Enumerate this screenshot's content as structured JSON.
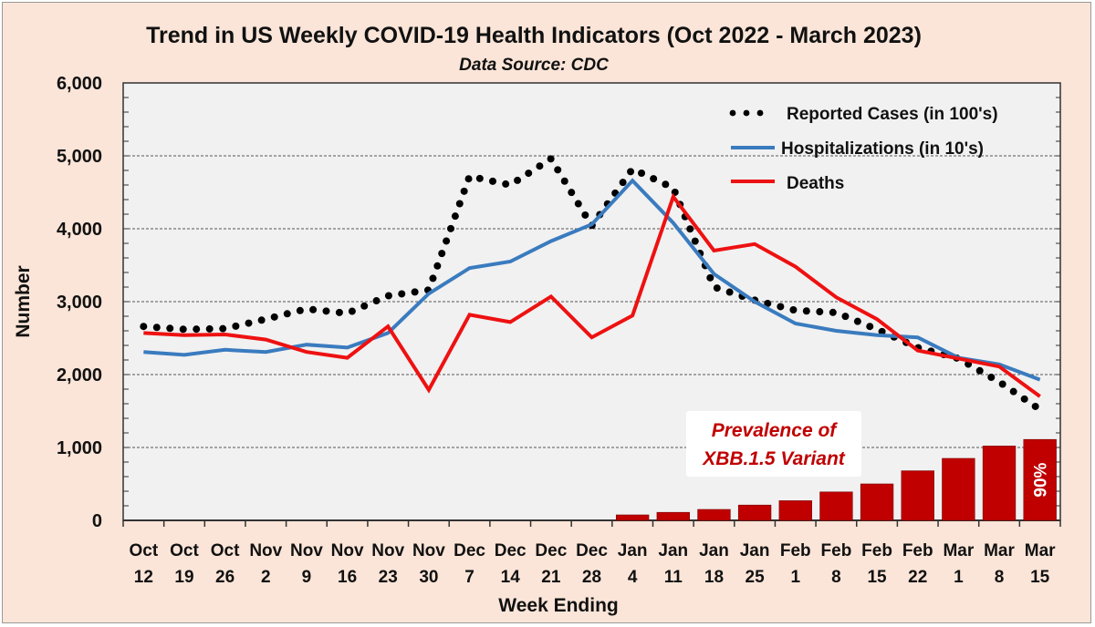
{
  "chart_data": {
    "type": "line",
    "title": "Trend in US Weekly COVID-19 Health Indicators (Oct 2022 - March 2023)",
    "subtitle": "Data Source: CDC",
    "xlabel": "Week Ending",
    "ylabel": "Number",
    "ylim": [
      0,
      6000
    ],
    "yticks": [
      0,
      1000,
      2000,
      3000,
      4000,
      5000,
      6000
    ],
    "ytick_labels": [
      "0",
      "1,000",
      "2,000",
      "3,000",
      "4,000",
      "5,000",
      "6,000"
    ],
    "grid": "horizontal-dashed",
    "legend_position": "top-right",
    "categories": [
      [
        "Oct",
        "12"
      ],
      [
        "Oct",
        "19"
      ],
      [
        "Oct",
        "26"
      ],
      [
        "Nov",
        "2"
      ],
      [
        "Nov",
        "9"
      ],
      [
        "Nov",
        "16"
      ],
      [
        "Nov",
        "23"
      ],
      [
        "Nov",
        "30"
      ],
      [
        "Dec",
        "7"
      ],
      [
        "Dec",
        "14"
      ],
      [
        "Dec",
        "21"
      ],
      [
        "Dec",
        "28"
      ],
      [
        "Jan",
        "4"
      ],
      [
        "Jan",
        "11"
      ],
      [
        "Jan",
        "18"
      ],
      [
        "Jan",
        "25"
      ],
      [
        "Feb",
        "1"
      ],
      [
        "Feb",
        "8"
      ],
      [
        "Feb",
        "15"
      ],
      [
        "Feb",
        "22"
      ],
      [
        "Mar",
        "1"
      ],
      [
        "Mar",
        "8"
      ],
      [
        "Mar",
        "15"
      ]
    ],
    "series": [
      {
        "name": "Reported Cases (in 100's)",
        "style": "dotted",
        "color": "#000000",
        "values": [
          2660,
          2620,
          2630,
          2760,
          2900,
          2840,
          3080,
          3160,
          4720,
          4600,
          4960,
          4040,
          4820,
          4560,
          3200,
          3020,
          2880,
          2850,
          2620,
          2370,
          2220,
          1900,
          1520
        ]
      },
      {
        "name": "Hospitalizations (in 10's)",
        "style": "solid",
        "color": "#3a7bbf",
        "values": [
          2310,
          2270,
          2340,
          2310,
          2410,
          2370,
          2570,
          3110,
          3460,
          3550,
          3830,
          4060,
          4660,
          4080,
          3380,
          3000,
          2700,
          2600,
          2540,
          2510,
          2230,
          2140,
          1930
        ]
      },
      {
        "name": "Deaths",
        "style": "solid",
        "color": "#ee1111",
        "values": [
          2570,
          2540,
          2550,
          2480,
          2310,
          2230,
          2660,
          1790,
          2820,
          2720,
          3070,
          2510,
          2810,
          4440,
          3700,
          3790,
          3480,
          3060,
          2760,
          2330,
          2220,
          2110,
          1700
        ]
      }
    ],
    "bars": {
      "name": "Prevalence of XBB.1.5 Variant",
      "unit": "%",
      "color": "#c00000",
      "start_index": 12,
      "percent_values": [
        6,
        9,
        12,
        17,
        22,
        32,
        41,
        55,
        69,
        83,
        90
      ],
      "axis_values": [
        75,
        110,
        150,
        210,
        270,
        390,
        500,
        680,
        850,
        1020,
        1110
      ],
      "last_label": "90%"
    },
    "annotation": [
      "Prevalence of",
      "XBB.1.5 Variant"
    ]
  }
}
